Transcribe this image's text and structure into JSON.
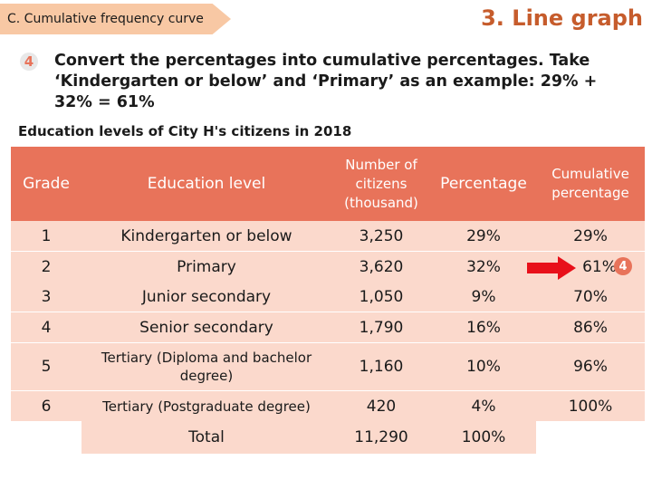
{
  "header": {
    "section_tab": "C. Cumulative frequency curve",
    "slide_title": "3. Line graph"
  },
  "instruction": {
    "step_number": "4",
    "text": "Convert the percentages into cumulative percentages. Take ‘Kindergarten or below’ and ‘Primary’ as an example: 29% + 32% = 61%"
  },
  "table": {
    "caption": "Education levels of City H's citizens in 2018",
    "headers": {
      "grade": "Grade",
      "education_level": "Education level",
      "citizens": "Number of citizens (thousand)",
      "percentage": "Percentage",
      "cumulative": "Cumulative percentage"
    },
    "rows": [
      {
        "grade": "1",
        "level": "Kindergarten or below",
        "citizens": "3,250",
        "percentage": "29%",
        "cumulative": "29%"
      },
      {
        "grade": "2",
        "level": "Primary",
        "citizens": "3,620",
        "percentage": "32%",
        "cumulative": "61%"
      },
      {
        "grade": "3",
        "level": "Junior secondary",
        "citizens": "1,050",
        "percentage": "9%",
        "cumulative": "70%"
      },
      {
        "grade": "4",
        "level": "Senior secondary",
        "citizens": "1,790",
        "percentage": "16%",
        "cumulative": "86%"
      },
      {
        "grade": "5",
        "level": "Tertiary (Diploma and bachelor degree)",
        "citizens": "1,160",
        "percentage": "10%",
        "cumulative": "96%"
      },
      {
        "grade": "6",
        "level": "Tertiary (Postgraduate degree)",
        "citizens": "420",
        "percentage": "4%",
        "cumulative": "100%"
      }
    ],
    "total": {
      "label": "Total",
      "citizens": "11,290",
      "percentage": "100%"
    },
    "row2_badge": "4"
  },
  "colors": {
    "header_fill": "#e8735a",
    "row_fill": "#fbd9cc",
    "title_color": "#c65c2c",
    "tab_fill": "#f8c8a4",
    "arrow_red": "#e8101a"
  }
}
